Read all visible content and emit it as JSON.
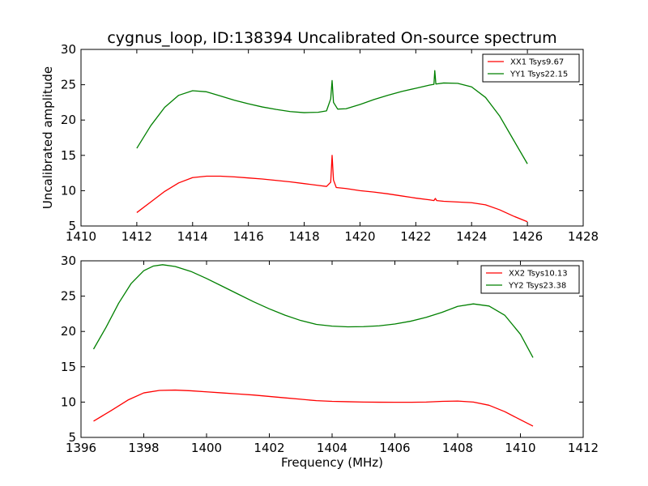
{
  "title": "cygnus_loop, ID:138394 Uncalibrated On-source spectrum",
  "colors": {
    "XX": "#ff0000",
    "YY": "#008000",
    "frame": "#000000",
    "background": "#ffffff"
  },
  "chart_data": [
    {
      "type": "line",
      "ylabel": "Uncalibrated amplitude",
      "xlabel": "",
      "xlim": [
        1410,
        1428
      ],
      "ylim": [
        5,
        30
      ],
      "xticks": [
        1410,
        1412,
        1414,
        1416,
        1418,
        1420,
        1422,
        1424,
        1426,
        1428
      ],
      "yticks": [
        5,
        10,
        15,
        20,
        25,
        30
      ],
      "grid": false,
      "legend_position": "top-right",
      "series": [
        {
          "name": "XX1 Tsys9.67",
          "color": "#ff0000",
          "points": [
            [
              1412.0,
              6.9
            ],
            [
              1412.5,
              8.4
            ],
            [
              1413.0,
              9.9
            ],
            [
              1413.5,
              11.1
            ],
            [
              1414.0,
              11.85
            ],
            [
              1414.5,
              12.05
            ],
            [
              1415.0,
              12.05
            ],
            [
              1415.5,
              11.95
            ],
            [
              1416.0,
              11.8
            ],
            [
              1416.5,
              11.65
            ],
            [
              1417.0,
              11.45
            ],
            [
              1417.5,
              11.25
            ],
            [
              1418.0,
              11.0
            ],
            [
              1418.5,
              10.75
            ],
            [
              1418.8,
              10.6
            ],
            [
              1418.95,
              11.2
            ],
            [
              1419.0,
              15.0
            ],
            [
              1419.05,
              11.5
            ],
            [
              1419.15,
              10.45
            ],
            [
              1419.5,
              10.3
            ],
            [
              1420.0,
              10.0
            ],
            [
              1420.5,
              9.8
            ],
            [
              1421.0,
              9.55
            ],
            [
              1421.5,
              9.25
            ],
            [
              1422.0,
              8.95
            ],
            [
              1422.5,
              8.7
            ],
            [
              1422.65,
              8.6
            ],
            [
              1422.7,
              8.9
            ],
            [
              1422.75,
              8.6
            ],
            [
              1423.0,
              8.5
            ],
            [
              1423.5,
              8.4
            ],
            [
              1424.0,
              8.3
            ],
            [
              1424.5,
              8.0
            ],
            [
              1425.0,
              7.3
            ],
            [
              1425.5,
              6.4
            ],
            [
              1426.0,
              5.6
            ]
          ]
        },
        {
          "name": "YY1 Tsys22.15",
          "color": "#008000",
          "points": [
            [
              1412.0,
              16.0
            ],
            [
              1412.5,
              19.2
            ],
            [
              1413.0,
              21.8
            ],
            [
              1413.5,
              23.5
            ],
            [
              1414.0,
              24.15
            ],
            [
              1414.5,
              24.0
            ],
            [
              1415.0,
              23.4
            ],
            [
              1415.5,
              22.8
            ],
            [
              1416.0,
              22.3
            ],
            [
              1416.5,
              21.85
            ],
            [
              1417.0,
              21.5
            ],
            [
              1417.5,
              21.2
            ],
            [
              1418.0,
              21.05
            ],
            [
              1418.5,
              21.1
            ],
            [
              1418.8,
              21.3
            ],
            [
              1418.95,
              23.0
            ],
            [
              1419.0,
              25.6
            ],
            [
              1419.05,
              22.5
            ],
            [
              1419.2,
              21.55
            ],
            [
              1419.5,
              21.6
            ],
            [
              1420.0,
              22.2
            ],
            [
              1420.5,
              22.9
            ],
            [
              1421.0,
              23.5
            ],
            [
              1421.5,
              24.05
            ],
            [
              1422.0,
              24.5
            ],
            [
              1422.5,
              24.95
            ],
            [
              1422.65,
              25.05
            ],
            [
              1422.68,
              27.0
            ],
            [
              1422.72,
              25.1
            ],
            [
              1423.0,
              25.25
            ],
            [
              1423.5,
              25.2
            ],
            [
              1424.0,
              24.7
            ],
            [
              1424.5,
              23.2
            ],
            [
              1425.0,
              20.6
            ],
            [
              1425.5,
              17.2
            ],
            [
              1426.0,
              13.8
            ]
          ]
        }
      ]
    },
    {
      "type": "line",
      "ylabel": "",
      "xlabel": "Frequency (MHz)",
      "xlim": [
        1396,
        1412
      ],
      "ylim": [
        5,
        30
      ],
      "xticks": [
        1396,
        1398,
        1400,
        1402,
        1404,
        1406,
        1408,
        1410,
        1412
      ],
      "yticks": [
        5,
        10,
        15,
        20,
        25,
        30
      ],
      "grid": false,
      "legend_position": "top-right",
      "series": [
        {
          "name": "XX2 Tsys10.13",
          "color": "#ff0000",
          "points": [
            [
              1396.4,
              7.3
            ],
            [
              1397.0,
              8.9
            ],
            [
              1397.5,
              10.3
            ],
            [
              1398.0,
              11.3
            ],
            [
              1398.5,
              11.65
            ],
            [
              1399.0,
              11.7
            ],
            [
              1399.5,
              11.6
            ],
            [
              1400.0,
              11.45
            ],
            [
              1400.5,
              11.3
            ],
            [
              1401.0,
              11.15
            ],
            [
              1401.5,
              11.0
            ],
            [
              1402.0,
              10.8
            ],
            [
              1402.5,
              10.6
            ],
            [
              1403.0,
              10.4
            ],
            [
              1403.5,
              10.2
            ],
            [
              1404.0,
              10.1
            ],
            [
              1404.5,
              10.05
            ],
            [
              1405.0,
              10.0
            ],
            [
              1405.5,
              9.98
            ],
            [
              1406.0,
              9.97
            ],
            [
              1406.5,
              9.97
            ],
            [
              1407.0,
              10.0
            ],
            [
              1407.5,
              10.1
            ],
            [
              1408.0,
              10.15
            ],
            [
              1408.5,
              10.0
            ],
            [
              1409.0,
              9.55
            ],
            [
              1409.5,
              8.65
            ],
            [
              1410.0,
              7.5
            ],
            [
              1410.4,
              6.6
            ]
          ]
        },
        {
          "name": "YY2 Tsys23.38",
          "color": "#008000",
          "points": [
            [
              1396.4,
              17.5
            ],
            [
              1396.8,
              20.6
            ],
            [
              1397.2,
              24.0
            ],
            [
              1397.6,
              26.8
            ],
            [
              1398.0,
              28.6
            ],
            [
              1398.3,
              29.25
            ],
            [
              1398.6,
              29.45
            ],
            [
              1399.0,
              29.2
            ],
            [
              1399.5,
              28.5
            ],
            [
              1400.0,
              27.5
            ],
            [
              1400.5,
              26.4
            ],
            [
              1401.0,
              25.3
            ],
            [
              1401.5,
              24.2
            ],
            [
              1402.0,
              23.2
            ],
            [
              1402.5,
              22.3
            ],
            [
              1403.0,
              21.55
            ],
            [
              1403.5,
              21.0
            ],
            [
              1404.0,
              20.75
            ],
            [
              1404.5,
              20.65
            ],
            [
              1405.0,
              20.68
            ],
            [
              1405.5,
              20.8
            ],
            [
              1406.0,
              21.05
            ],
            [
              1406.5,
              21.45
            ],
            [
              1407.0,
              22.0
            ],
            [
              1407.5,
              22.7
            ],
            [
              1408.0,
              23.55
            ],
            [
              1408.5,
              23.9
            ],
            [
              1409.0,
              23.6
            ],
            [
              1409.5,
              22.3
            ],
            [
              1410.0,
              19.6
            ],
            [
              1410.4,
              16.3
            ]
          ]
        }
      ]
    }
  ]
}
